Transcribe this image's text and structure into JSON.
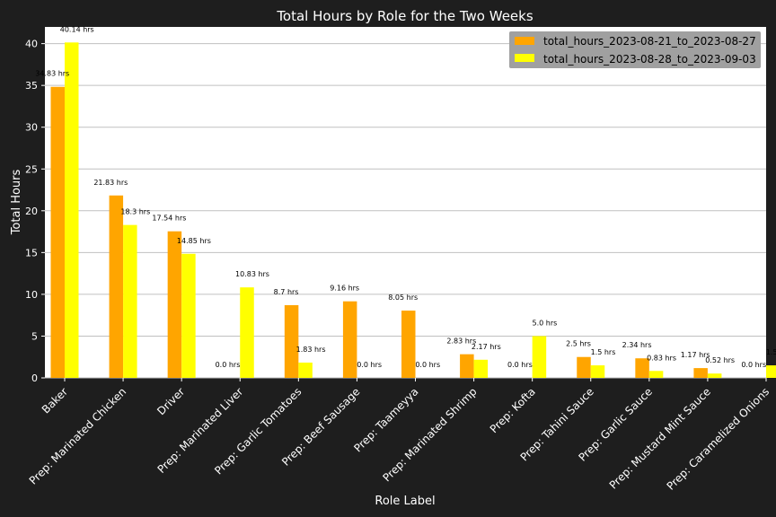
{
  "chart_data": {
    "type": "bar",
    "title": "Total Hours by Role for the Two Weeks",
    "xlabel": "Role Label",
    "ylabel": "Total Hours",
    "ylim": [
      0,
      42
    ],
    "yticks": [
      0,
      5,
      10,
      15,
      20,
      25,
      30,
      35,
      40
    ],
    "grid": true,
    "legend_position": "top-right",
    "label_suffix": " hrs",
    "categories": [
      "Baker",
      "Prep: Marinated Chicken",
      "Driver",
      "Prep: Marinated Liver",
      "Prep: Garlic Tomatoes",
      "Prep: Beef Sausage",
      "Prep: Taameyya",
      "Prep: Marinated Shrimp",
      "Prep: Kofta",
      "Prep: Tahini Sauce",
      "Prep: Garlic Sauce",
      "Prep: Mustard Mint Sauce",
      "Prep: Caramelized Onions"
    ],
    "series": [
      {
        "name": "total_hours_2023-08-21_to_2023-08-27",
        "color": "#ffa500",
        "values": [
          34.83,
          21.83,
          17.54,
          0.0,
          8.7,
          9.16,
          8.05,
          2.83,
          0.0,
          2.5,
          2.34,
          1.17,
          0.0
        ]
      },
      {
        "name": "total_hours_2023-08-28_to_2023-09-03",
        "color": "#ffff00",
        "values": [
          40.14,
          18.3,
          14.85,
          10.83,
          1.83,
          0.0,
          0.0,
          2.17,
          5.0,
          1.5,
          0.83,
          0.52,
          1.5
        ]
      }
    ]
  },
  "colors": {
    "background": "#1e1e1e",
    "plot_background": "#ffffff",
    "grid": "#c0c0c0",
    "legend_background": "#a0a0a0"
  }
}
